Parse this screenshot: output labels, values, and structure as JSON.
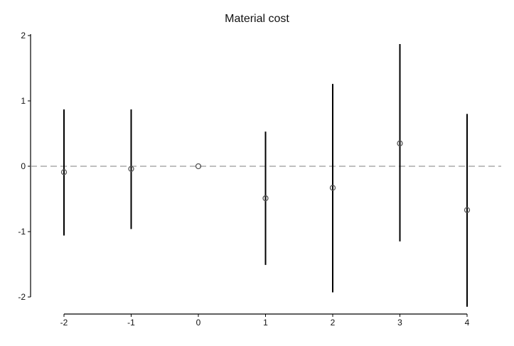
{
  "chart_data": {
    "type": "scatter",
    "title": "Material cost",
    "xlabel": "",
    "ylabel": "",
    "x": [
      -2,
      -1,
      0,
      1,
      2,
      3,
      4
    ],
    "series": [
      {
        "estimate": [
          -0.09,
          -0.04,
          0.0,
          -0.49,
          -0.33,
          0.35,
          -0.67
        ],
        "ci_low": [
          -1.06,
          -0.96,
          0.0,
          -1.51,
          -1.93,
          -1.15,
          -2.15
        ],
        "ci_high": [
          0.87,
          0.87,
          0.0,
          0.53,
          1.26,
          1.87,
          0.8
        ]
      }
    ],
    "reference_line": {
      "y": 0,
      "style": "dashed"
    },
    "xticks": [
      "-2",
      "-1",
      "0",
      "1",
      "2",
      "3",
      "4"
    ],
    "yticks": [
      "2",
      "1",
      "0",
      "-1",
      "-2"
    ],
    "xlim": [
      -2,
      4
    ],
    "ylim": [
      -2,
      2
    ],
    "grid": false,
    "legend": "none",
    "colors": {
      "marker": "#555555",
      "bar": "#000000",
      "axis": "#000000",
      "reference": "#999999"
    }
  }
}
